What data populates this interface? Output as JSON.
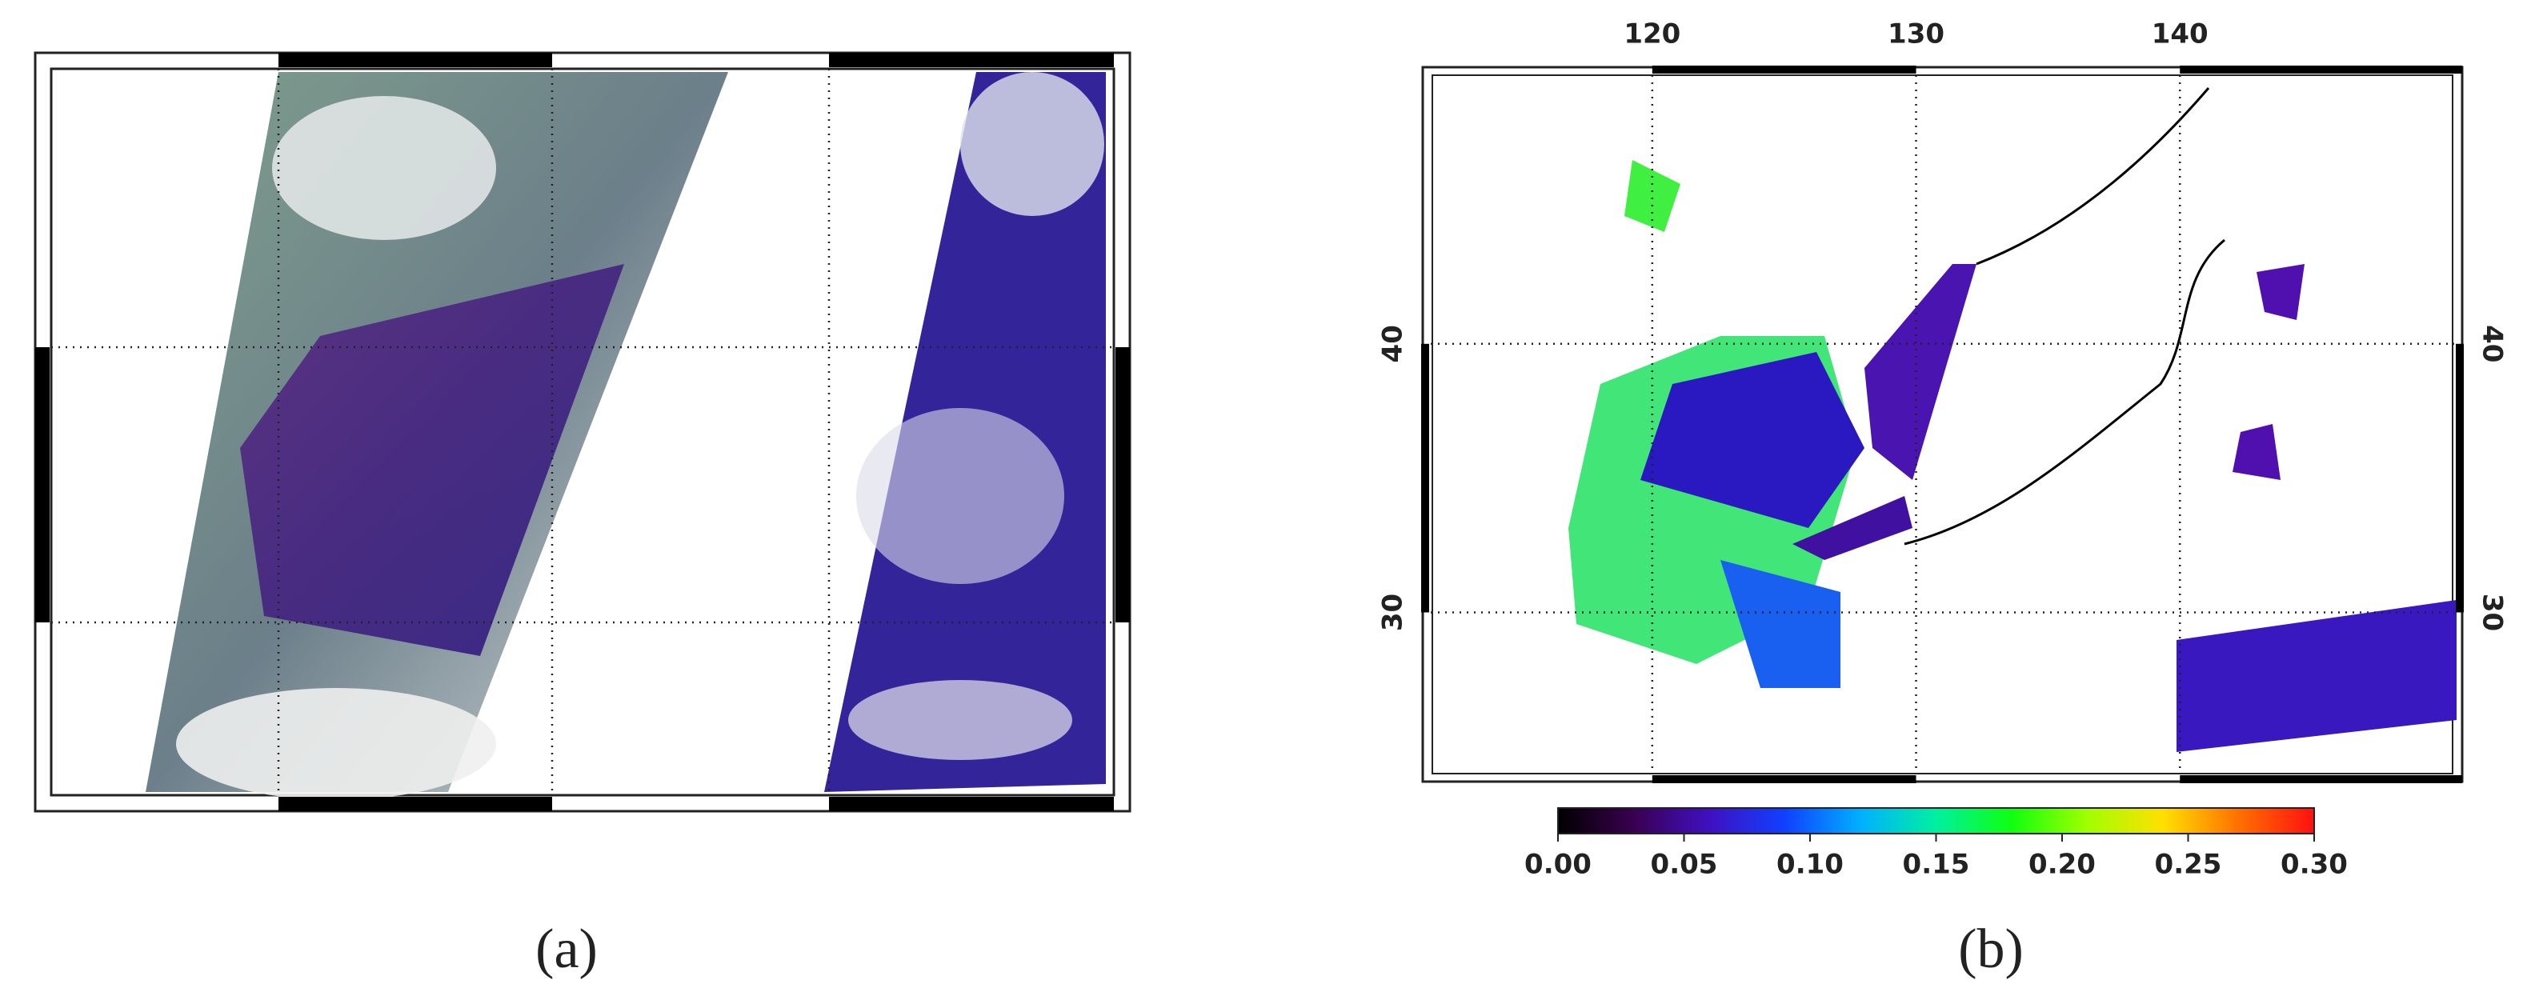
{
  "panels": [
    {
      "label": "(a)"
    },
    {
      "label": "(b)",
      "lonlim": [
        111.3,
        150.7
      ],
      "latlim": [
        23.7,
        50.3
      ],
      "lon_ticks": [
        120,
        130,
        140
      ],
      "lat_ticks": [
        40,
        30
      ],
      "colorbar": {
        "lim": [
          0,
          0.3
        ],
        "ticks": [
          {
            "value": 0,
            "label": "0.00"
          },
          {
            "value": 0.05,
            "label": "0.05"
          },
          {
            "value": 0.1,
            "label": "0.10"
          },
          {
            "value": 0.15,
            "label": "0.15"
          },
          {
            "value": 0.2,
            "label": "0.20"
          },
          {
            "value": 0.25,
            "label": "0.25"
          },
          {
            "value": 0.3,
            "label": "0.30"
          }
        ]
      }
    }
  ]
}
